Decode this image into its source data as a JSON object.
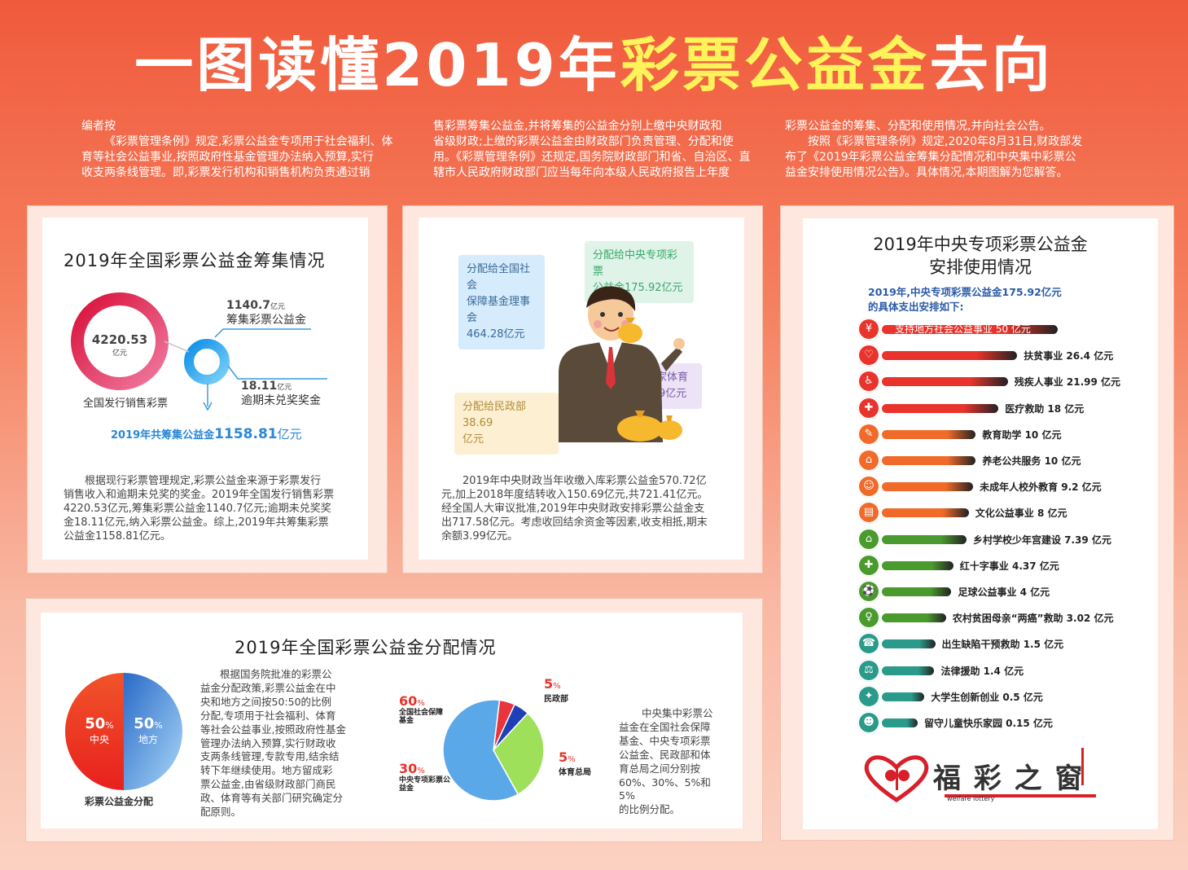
{
  "title": {
    "part1": "一图读懂2019年",
    "part2": "彩票公益金",
    "part3": "去向"
  },
  "intro": {
    "col1": [
      "编者按",
      "《彩票管理条例》规定,彩票公益金专项用于社会福利、体",
      "育等社会公益事业,按照政府性基金管理办法纳入预算,实行",
      "收支两条线管理。即,彩票发行机构和销售机构负责通过销"
    ],
    "col2": [
      "售彩票筹集公益金,并将筹集的公益金分别上缴中央财政和",
      "省级财政;上缴的彩票公益金由财政部门负责管理、分配和使",
      "用。《彩票管理条例》还规定,国务院财政部门和省、自治区、直",
      "辖市人民政府财政部门应当每年向本级人民政府报告上年度"
    ],
    "col3": [
      "彩票公益金的筹集、分配和使用情况,并向社会公告。",
      "按照《彩票管理条例》规定,2020年8月31日,财政部发",
      "布了《2019年彩票公益金筹集分配情况和中央集中彩票公",
      "益金安排使用情况公告》。具体情况,本期图解为您解答。"
    ]
  },
  "collection": {
    "title": "2019年全国彩票公益金筹集情况",
    "total_value": "4220.53",
    "total_unit": "亿元",
    "total_label": "全国发行销售彩票",
    "raised_value": "1140.7",
    "raised_unit": "亿元",
    "raised_label": "筹集彩票公益金",
    "expired_value": "18.11",
    "expired_unit": "亿元",
    "expired_label": "逾期未兑奖奖金",
    "summary_prefix": "2019年共筹集公益金",
    "summary_value": "1158.81",
    "summary_unit": "亿元",
    "text": [
      "根据现行彩票管理规定,彩票公益金来源于彩票发行",
      "销售收入和逾期未兑奖的奖金。2019年全国发行销售彩票",
      "4220.53亿元,筹集彩票公益金1140.7亿元;逾期未兑奖奖",
      "金18.11亿元,纳入彩票公益金。综上,2019年共筹集彩票",
      "公益金1158.81亿元。"
    ]
  },
  "central": {
    "bubble_social": [
      "分配给全国社会",
      "保障基金理事会",
      "464.28亿元"
    ],
    "bubble_special": [
      "分配给中央专项彩票",
      "公益金175.92亿元"
    ],
    "bubble_sports": [
      "分配给国家体育",
      "总局38.69亿元"
    ],
    "bubble_civil": [
      "分配给民政部38.69",
      "亿元"
    ],
    "text": [
      "2019年中央财政当年收缴入库彩票公益金570.72亿",
      "元,加上2018年度结转收入150.69亿元,共721.41亿元。",
      "经全国人大审议批准,2019年中央财政安排彩票公益金支",
      "出717.58亿元。考虑收回结余资金等因素,收支相抵,期末",
      "余额3.99亿元。"
    ]
  },
  "distribution": {
    "title": "2019年全国彩票公益金分配情况",
    "central_pct": "50",
    "central_label": "中央",
    "local_pct": "50",
    "local_label": "地方",
    "pie_label": "彩票公益金分配",
    "text": [
      "根据国务院批准的彩票公",
      "益金分配政策,彩票公益金在中",
      "央和地方之间按50:50的比例",
      "分配,专项用于社会福利、体育",
      "等社会公益事业,按照政府性基金",
      "管理办法纳入预算,实行财政收",
      "支两条线管理,专款专用,结余结",
      "转下年继续使用。地方留成彩",
      "票公益金,由省级财政部门商民",
      "政、体育等有关部门研究确定分",
      "配原则。"
    ],
    "text2": [
      "中央集中彩票公",
      "益金在全国社会保障",
      "基金、中央专项彩票",
      "公益金、民政部和体",
      "育总局之间分别按",
      "60%、30%、5%和5%",
      "的比例分配。"
    ],
    "slices": [
      {
        "pct": 60,
        "pct_text": "60",
        "name": "全国社会保障基金",
        "name_lines": [
          "全国社会保障",
          "基金"
        ],
        "color": "#5aa8e8"
      },
      {
        "pct": 30,
        "pct_text": "30",
        "name": "中央专项彩票公益金",
        "name_lines": [
          "中央专项彩票公",
          "益金"
        ],
        "color": "#9ee05a"
      },
      {
        "pct": 5,
        "pct_text": "5",
        "name": "民政部",
        "name_lines": [
          "民政部"
        ],
        "color": "#e8343a"
      },
      {
        "pct": 5,
        "pct_text": "5",
        "name": "体育总局",
        "name_lines": [
          "体育总局"
        ],
        "color": "#1f3fb8"
      }
    ],
    "pct_sign": "%"
  },
  "special": {
    "title_line1": "2019年中央专项彩票公益金",
    "title_line2": "安排使用情况",
    "sub_line1": "2019年,中央专项彩票公益金175.92亿元",
    "sub_line2": "的具体支出安排如下:",
    "items": [
      {
        "label": "支持地方社会公益事业 50 亿元",
        "value": 50,
        "color": "#e8342c",
        "icon": "¥"
      },
      {
        "label": "扶贫事业 26.4 亿元",
        "value": 26.4,
        "color": "#e8342c",
        "icon": "♡"
      },
      {
        "label": "残疾人事业 21.99 亿元",
        "value": 21.99,
        "color": "#e8342c",
        "icon": "♿"
      },
      {
        "label": "医疗救助 18 亿元",
        "value": 18,
        "color": "#e8342c",
        "icon": "✚"
      },
      {
        "label": "教育助学 10 亿元",
        "value": 10,
        "color": "#f06a2a",
        "icon": "✎"
      },
      {
        "label": "养老公共服务 10 亿元",
        "value": 10,
        "color": "#f06a2a",
        "icon": "⌂"
      },
      {
        "label": "未成年人校外教育 9.2 亿元",
        "value": 9.2,
        "color": "#f06a2a",
        "icon": "☺"
      },
      {
        "label": "文化公益事业 8 亿元",
        "value": 8,
        "color": "#f06a2a",
        "icon": "▤"
      },
      {
        "label": "乡村学校少年宫建设 7.39 亿元",
        "value": 7.39,
        "color": "#4a9a2e",
        "icon": "⌂"
      },
      {
        "label": "红十字事业 4.37 亿元",
        "value": 4.37,
        "color": "#4a9a2e",
        "icon": "✚"
      },
      {
        "label": "足球公益事业 4 亿元",
        "value": 4,
        "color": "#4a9a2e",
        "icon": "⚽"
      },
      {
        "label": "农村贫困母亲“两癌”救助 3.02 亿元",
        "value": 3.02,
        "color": "#4a9a2e",
        "icon": "♀"
      },
      {
        "label": "出生缺陷干预救助 1.5 亿元",
        "value": 1.5,
        "color": "#2a9a8a",
        "icon": "☎"
      },
      {
        "label": "法律援助 1.4 亿元",
        "value": 1.4,
        "color": "#2a9a8a",
        "icon": "⚖"
      },
      {
        "label": "大学生创新创业 0.5 亿元",
        "value": 0.5,
        "color": "#2a9a8a",
        "icon": "✦"
      },
      {
        "label": "留守儿童快乐家园 0.15 亿元",
        "value": 0.15,
        "color": "#2a9a8a",
        "icon": "☻"
      }
    ]
  },
  "logo": {
    "name_cn": "福 彩 之 窗",
    "name_en": "welfare lottery"
  }
}
